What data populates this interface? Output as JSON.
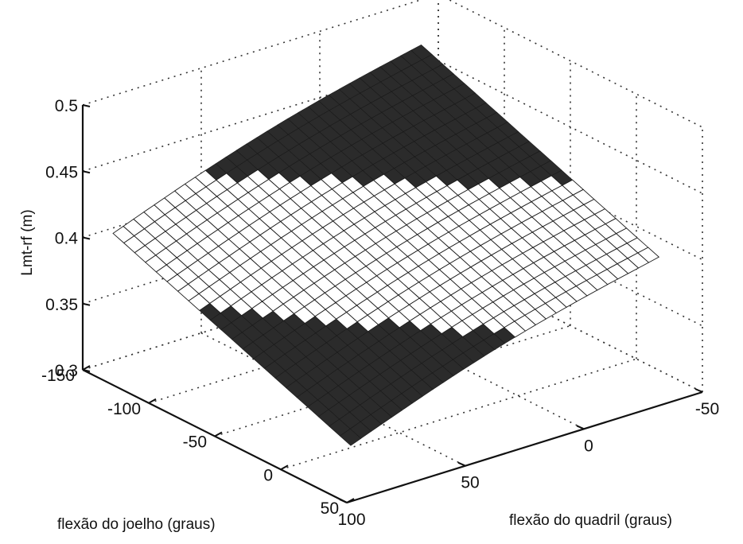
{
  "chart_data": {
    "type": "surface",
    "title": "",
    "xlabel": "flexão do quadril (graus)",
    "ylabel": "flexão do joelho (graus)",
    "zlabel": "Lmt-rf (m)",
    "xlim": [
      -50,
      100
    ],
    "ylim": [
      -150,
      50
    ],
    "zlim": [
      0.3,
      0.5
    ],
    "x_ticks": [
      "-50",
      "0",
      "50",
      "100"
    ],
    "y_ticks": [
      "-150",
      "-100",
      "-50",
      "0",
      "50"
    ],
    "z_ticks": [
      "0.3",
      "0.35",
      "0.4",
      "0.45",
      "0.5"
    ],
    "grid": true,
    "colors": {
      "dark_band": "#2b2b2b",
      "light_band": "#ffffff",
      "mesh": "#1a1a1a"
    },
    "surface": {
      "x_range": [
        -40,
        90
      ],
      "y_range": [
        -145,
        35
      ],
      "z_at_corners": {
        "x_-40_y_-145": 0.47,
        "x_-40_y_35": 0.4,
        "x_90_y_-145": 0.4,
        "x_90_y_35": 0.33
      }
    }
  }
}
